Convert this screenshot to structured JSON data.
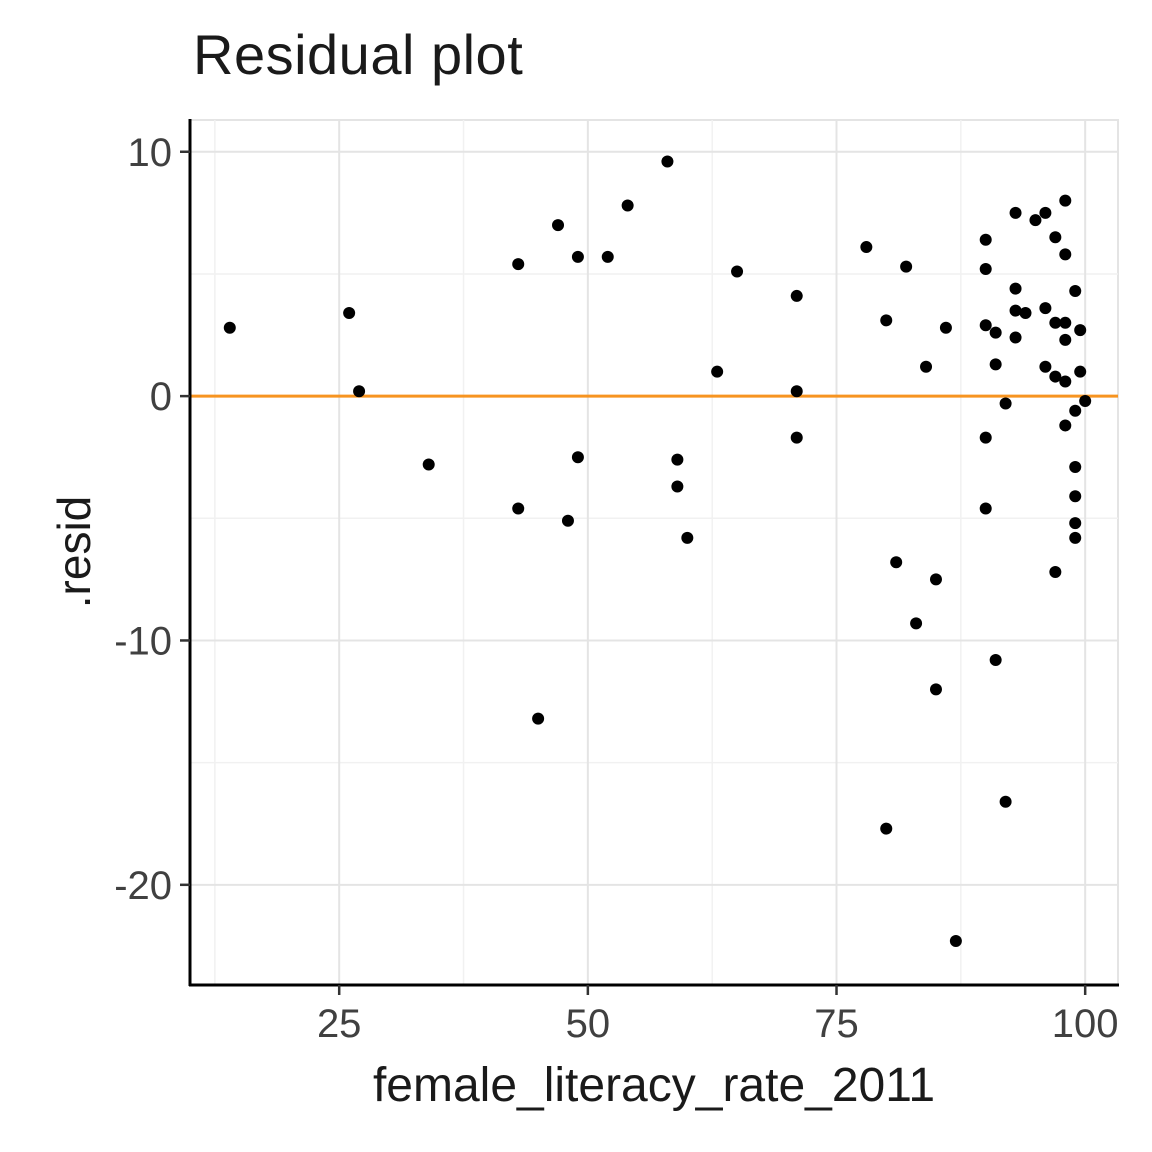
{
  "chart": {
    "title": "Residual plot",
    "x_axis_label": "female_literacy_rate_2011",
    "y_axis_label": ".resid"
  },
  "chart_data": {
    "type": "scatter",
    "title": "Residual plot",
    "xlabel": "female_literacy_rate_2011",
    "ylabel": ".resid",
    "xlim": [
      10,
      103.3
    ],
    "ylim": [
      -24.1,
      11.3
    ],
    "x_ticks": [
      25,
      50,
      75,
      100
    ],
    "y_ticks": [
      10,
      0,
      -10,
      -20
    ],
    "x_minor_ticks": [
      12.5,
      37.5,
      62.5,
      87.5
    ],
    "y_minor_ticks": [
      5,
      -5,
      -15
    ],
    "grid": true,
    "legend": "none",
    "hline": {
      "y": 0,
      "color": "#F79420"
    },
    "point_color": "#000000",
    "point_radius": 6,
    "grid_major_color": "#E4E4E4",
    "grid_minor_color": "#F1F1F1",
    "axis_line_color": "#000000",
    "tick_label_color": "#404040",
    "points": [
      [
        14,
        2.8
      ],
      [
        26,
        3.4
      ],
      [
        27,
        0.2
      ],
      [
        34,
        -2.8
      ],
      [
        43,
        5.4
      ],
      [
        43,
        -4.6
      ],
      [
        45,
        -13.2
      ],
      [
        47,
        7.0
      ],
      [
        48,
        -5.1
      ],
      [
        49,
        -2.5
      ],
      [
        49,
        5.7
      ],
      [
        52,
        5.7
      ],
      [
        54,
        7.8
      ],
      [
        58,
        9.6
      ],
      [
        59,
        -2.6
      ],
      [
        59,
        -3.7
      ],
      [
        60,
        -5.8
      ],
      [
        63,
        1.0
      ],
      [
        65,
        5.1
      ],
      [
        71,
        -1.7
      ],
      [
        71,
        4.1
      ],
      [
        71,
        0.2
      ],
      [
        78,
        6.1
      ],
      [
        80,
        3.1
      ],
      [
        80,
        -17.7
      ],
      [
        81,
        -6.8
      ],
      [
        82,
        5.3
      ],
      [
        83,
        -9.3
      ],
      [
        84,
        1.2
      ],
      [
        85,
        -7.5
      ],
      [
        85,
        -12.0
      ],
      [
        86,
        2.8
      ],
      [
        87,
        -22.3
      ],
      [
        90,
        -1.7
      ],
      [
        90,
        -4.6
      ],
      [
        90,
        6.4
      ],
      [
        90,
        2.9
      ],
      [
        90,
        5.2
      ],
      [
        91,
        -10.8
      ],
      [
        91,
        2.6
      ],
      [
        91,
        1.3
      ],
      [
        92,
        -16.6
      ],
      [
        92,
        -0.3
      ],
      [
        93,
        3.5
      ],
      [
        93,
        2.4
      ],
      [
        93,
        7.5
      ],
      [
        93,
        4.4
      ],
      [
        94,
        3.4
      ],
      [
        95,
        7.2
      ],
      [
        96,
        3.6
      ],
      [
        96,
        1.2
      ],
      [
        96,
        7.5
      ],
      [
        97,
        0.8
      ],
      [
        97,
        6.5
      ],
      [
        97,
        3.0
      ],
      [
        97,
        -7.2
      ],
      [
        98,
        0.6
      ],
      [
        98,
        8.0
      ],
      [
        98,
        3.0
      ],
      [
        98,
        -1.2
      ],
      [
        98,
        5.8
      ],
      [
        98,
        2.3
      ],
      [
        99,
        -2.9
      ],
      [
        99,
        -4.1
      ],
      [
        99,
        -5.2
      ],
      [
        99,
        -5.8
      ],
      [
        99,
        -0.6
      ],
      [
        99,
        4.3
      ],
      [
        99.5,
        2.7
      ],
      [
        99.5,
        1.0
      ],
      [
        100,
        -0.2
      ]
    ]
  }
}
